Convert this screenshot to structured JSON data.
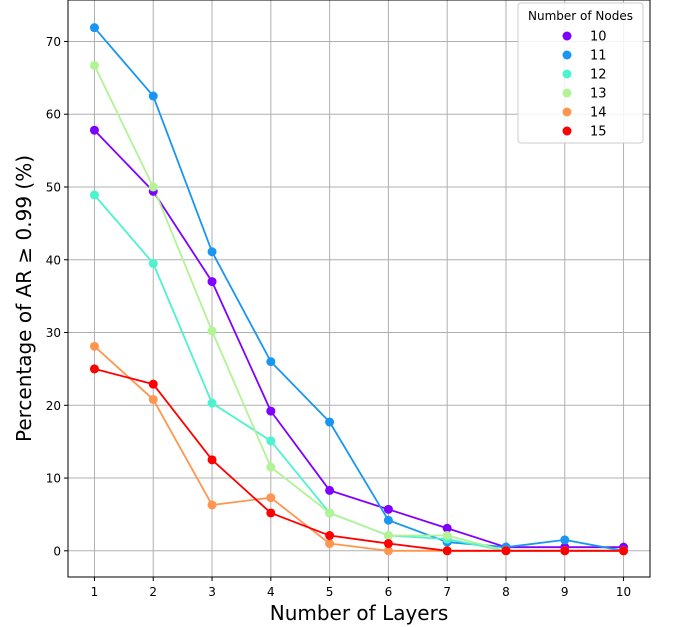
{
  "chart_data": {
    "type": "line",
    "title": "",
    "xlabel": "Number of Layers",
    "ylabel": "Percentage of AR ≥ 0.99 (%)",
    "x": [
      1,
      2,
      3,
      4,
      5,
      6,
      7,
      8,
      9,
      10
    ],
    "xticks": [
      "1",
      "2",
      "3",
      "4",
      "5",
      "6",
      "7",
      "8",
      "9",
      "10"
    ],
    "yticks": [
      "0",
      "10",
      "20",
      "30",
      "40",
      "50",
      "60",
      "70"
    ],
    "xlim": [
      0.55,
      10.45
    ],
    "ylim": [
      -3.6,
      75.7
    ],
    "grid": true,
    "legend": {
      "title": "Number of Nodes",
      "placement": "top-right"
    },
    "series": [
      {
        "name": "10",
        "color": "#8000ff",
        "values": [
          57.8,
          49.4,
          37.0,
          19.2,
          8.3,
          5.7,
          3.1,
          0.5,
          0.5,
          0.5
        ]
      },
      {
        "name": "11",
        "color": "#1996f3",
        "values": [
          71.9,
          62.5,
          41.1,
          26.0,
          17.7,
          4.2,
          1.2,
          0.5,
          1.5,
          0.0
        ]
      },
      {
        "name": "12",
        "color": "#4df3ce",
        "values": [
          48.9,
          39.5,
          20.3,
          15.1,
          5.2,
          2.1,
          1.6,
          0.0,
          0.0,
          0.0
        ]
      },
      {
        "name": "13",
        "color": "#b2f396",
        "values": [
          66.7,
          50.0,
          30.2,
          11.5,
          5.2,
          2.1,
          2.1,
          0.0,
          0.0,
          0.0
        ]
      },
      {
        "name": "14",
        "color": "#ff964f",
        "values": [
          28.1,
          20.8,
          6.3,
          7.3,
          1.0,
          0.0,
          0.0,
          0.0,
          0.0,
          0.0
        ]
      },
      {
        "name": "15",
        "color": "#ff0000",
        "values": [
          25.0,
          22.9,
          12.5,
          5.2,
          2.1,
          1.0,
          0.0,
          0.0,
          0.0,
          0.0
        ]
      }
    ]
  }
}
